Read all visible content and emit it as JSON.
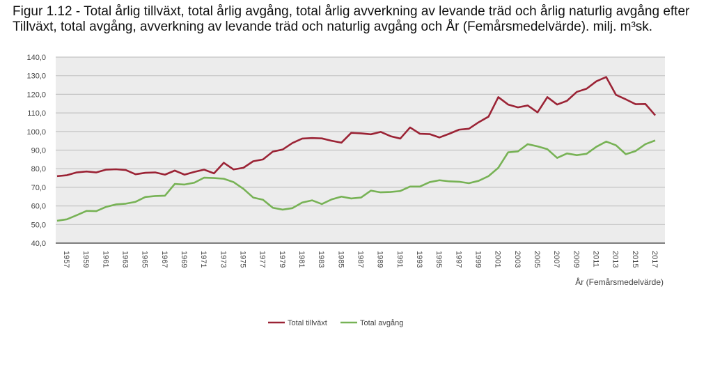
{
  "chart_data": {
    "type": "line",
    "title": "Figur 1.12 - Total årlig tillväxt, total årlig avgång, total årlig avverkning av levande träd och årlig naturlig avgång efter Tillväxt, total avgång, avverkning av levande träd och naturlig avgång och År (Femårsmedelvärde). milj. m³sk.",
    "xlabel": "År (Femårsmedelvärde)",
    "ylabel": "",
    "ylim": [
      40,
      140
    ],
    "yticks": [
      "40,0",
      "50,0",
      "60,0",
      "70,0",
      "80,0",
      "90,0",
      "100,0",
      "110,0",
      "120,0",
      "130,0",
      "140,0"
    ],
    "x": [
      1956,
      1957,
      1958,
      1959,
      1960,
      1961,
      1962,
      1963,
      1964,
      1965,
      1966,
      1967,
      1968,
      1969,
      1970,
      1971,
      1972,
      1973,
      1974,
      1975,
      1976,
      1977,
      1978,
      1979,
      1980,
      1981,
      1982,
      1983,
      1984,
      1985,
      1986,
      1987,
      1988,
      1989,
      1990,
      1991,
      1992,
      1993,
      1994,
      1995,
      1996,
      1997,
      1998,
      1999,
      2000,
      2001,
      2002,
      2003,
      2004,
      2005,
      2006,
      2007,
      2008,
      2009,
      2010,
      2011,
      2012,
      2013,
      2014,
      2015,
      2016,
      2017
    ],
    "xticks": [
      "1957",
      "1959",
      "1961",
      "1963",
      "1965",
      "1967",
      "1969",
      "1971",
      "1973",
      "1975",
      "1977",
      "1979",
      "1981",
      "1983",
      "1985",
      "1987",
      "1989",
      "1991",
      "1993",
      "1995",
      "1997",
      "1999",
      "2001",
      "2003",
      "2005",
      "2007",
      "2009",
      "2011",
      "2013",
      "2015",
      "2017"
    ],
    "grid": true,
    "legend_position": "bottom",
    "series": [
      {
        "name": "Total tillväxt",
        "color": "#9b2335",
        "values": [
          76,
          76.5,
          78,
          78.5,
          78,
          79.5,
          79.7,
          79.3,
          77,
          77.8,
          78,
          76.8,
          79,
          76.8,
          78.3,
          79.5,
          77.5,
          83.2,
          79.6,
          80.5,
          84,
          85,
          89.2,
          90.3,
          93.8,
          96.2,
          96.5,
          96.3,
          95,
          94,
          99.3,
          99,
          98.5,
          99.8,
          97.5,
          96.2,
          102.2,
          98.8,
          98.6,
          96.8,
          98.8,
          101,
          101.5,
          105,
          108,
          118.5,
          114.5,
          113,
          114,
          110.3,
          118.5,
          114.5,
          116.5,
          121.3,
          123,
          127,
          129.3,
          119.7,
          117.3,
          114.7,
          114.8,
          108.7
        ]
      },
      {
        "name": "Total avgång",
        "color": "#77b255",
        "values": [
          52,
          52.8,
          55,
          57.3,
          57.2,
          59.5,
          60.8,
          61.2,
          62.2,
          64.8,
          65.3,
          65.5,
          71.8,
          71.5,
          72.5,
          75.2,
          75,
          74.6,
          72.8,
          69.2,
          64.5,
          63.3,
          59,
          58,
          58.8,
          61.8,
          63,
          61,
          63.5,
          65,
          64,
          64.5,
          68.2,
          67.3,
          67.5,
          68,
          70.4,
          70.4,
          72.8,
          73.8,
          73.2,
          73,
          72.2,
          73.5,
          76,
          80.5,
          88.8,
          89.3,
          93.2,
          92,
          90.5,
          85.8,
          88.2,
          87.3,
          88,
          91.8,
          94.6,
          92.6,
          87.8,
          89.5,
          93.2,
          95.2
        ]
      }
    ]
  }
}
